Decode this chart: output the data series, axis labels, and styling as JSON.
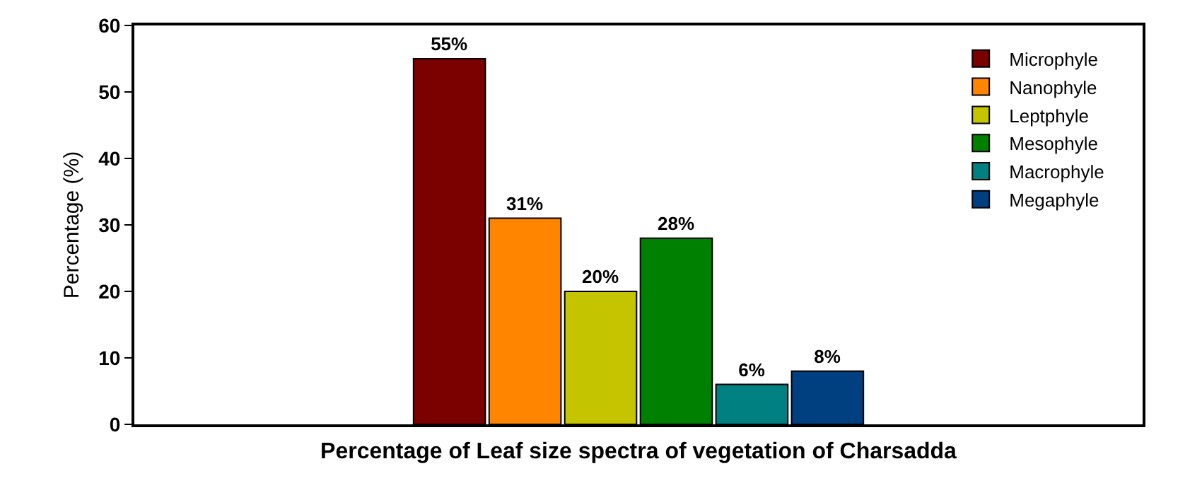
{
  "chart_data": {
    "type": "bar",
    "xlabel": "Percentage of Leaf size spectra of vegetation of Charsadda",
    "ylabel": "Percentage (%)",
    "categories": [
      null
    ],
    "series": [
      {
        "name": "Microphyle",
        "color": "#7b0000",
        "values": [
          55
        ],
        "value_labels": [
          "55%"
        ]
      },
      {
        "name": "Nanophyle",
        "color": "#ff8400",
        "values": [
          31
        ],
        "value_labels": [
          "31%"
        ]
      },
      {
        "name": "Leptphyle",
        "color": "#c4c400",
        "values": [
          20
        ],
        "value_labels": [
          "20%"
        ]
      },
      {
        "name": "Mesophyle",
        "color": "#008000",
        "values": [
          28
        ],
        "value_labels": [
          "28%"
        ]
      },
      {
        "name": "Macrophyle",
        "color": "#008080",
        "values": [
          6
        ],
        "value_labels": [
          "6%"
        ]
      },
      {
        "name": "Megaphyle",
        "color": "#003f80",
        "values": [
          8
        ],
        "value_labels": [
          "8%"
        ]
      }
    ],
    "ylim": [
      0,
      60
    ],
    "yticks": [
      0,
      10,
      20,
      30,
      40,
      50,
      60
    ],
    "legend": "top right",
    "tick_labels": "y"
  }
}
